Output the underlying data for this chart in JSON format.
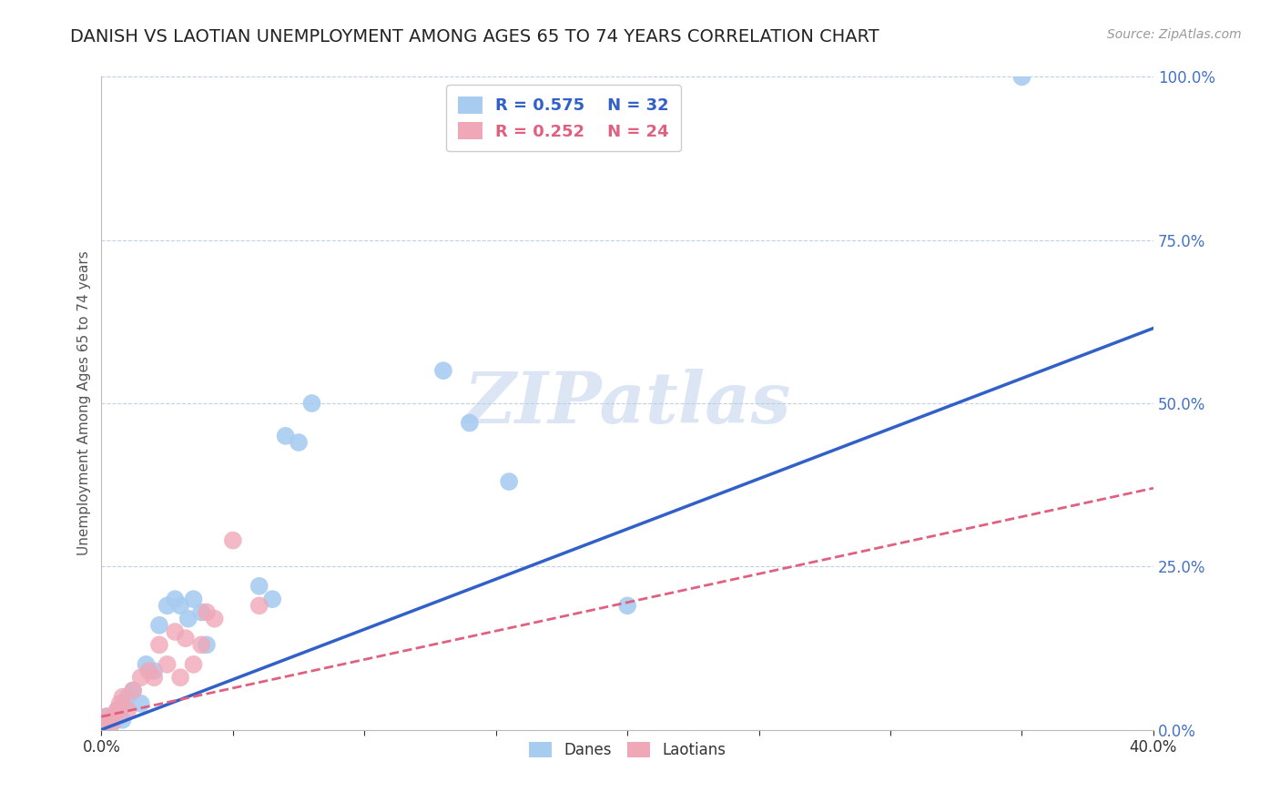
{
  "title": "DANISH VS LAOTIAN UNEMPLOYMENT AMONG AGES 65 TO 74 YEARS CORRELATION CHART",
  "source": "Source: ZipAtlas.com",
  "ylabel": "Unemployment Among Ages 65 to 74 years",
  "xlim": [
    0.0,
    0.4
  ],
  "ylim": [
    0.0,
    1.0
  ],
  "yticks": [
    0.0,
    0.25,
    0.5,
    0.75,
    1.0
  ],
  "xticks": [
    0.0,
    0.05,
    0.1,
    0.15,
    0.2,
    0.25,
    0.3,
    0.35,
    0.4
  ],
  "danes_R": 0.575,
  "danes_N": 32,
  "laotians_R": 0.252,
  "laotians_N": 24,
  "danes_color": "#A8CCF0",
  "laotians_color": "#F0A8B8",
  "danes_line_color": "#3060C8",
  "laotians_line_color": "#E06080",
  "grid_color": "#C0D0E8",
  "background_color": "#FFFFFF",
  "danes_x": [
    0.001,
    0.002,
    0.003,
    0.004,
    0.005,
    0.006,
    0.007,
    0.008,
    0.009,
    0.01,
    0.012,
    0.015,
    0.017,
    0.02,
    0.022,
    0.025,
    0.028,
    0.03,
    0.033,
    0.035,
    0.038,
    0.04,
    0.06,
    0.065,
    0.07,
    0.075,
    0.08,
    0.13,
    0.14,
    0.155,
    0.2,
    0.35
  ],
  "danes_y": [
    0.01,
    0.02,
    0.015,
    0.01,
    0.02,
    0.03,
    0.02,
    0.015,
    0.04,
    0.05,
    0.06,
    0.04,
    0.1,
    0.09,
    0.16,
    0.19,
    0.2,
    0.19,
    0.17,
    0.2,
    0.18,
    0.13,
    0.22,
    0.2,
    0.45,
    0.44,
    0.5,
    0.55,
    0.47,
    0.38,
    0.19,
    1.0
  ],
  "laotians_x": [
    0.001,
    0.002,
    0.003,
    0.004,
    0.005,
    0.006,
    0.007,
    0.008,
    0.01,
    0.012,
    0.015,
    0.018,
    0.02,
    0.022,
    0.025,
    0.028,
    0.03,
    0.032,
    0.035,
    0.038,
    0.04,
    0.043,
    0.05,
    0.06
  ],
  "laotians_y": [
    0.01,
    0.02,
    0.015,
    0.01,
    0.02,
    0.03,
    0.04,
    0.05,
    0.03,
    0.06,
    0.08,
    0.09,
    0.08,
    0.13,
    0.1,
    0.15,
    0.08,
    0.14,
    0.1,
    0.13,
    0.18,
    0.17,
    0.29,
    0.19
  ],
  "danes_line_x0": 0.0,
  "danes_line_y0": 0.0,
  "danes_line_x1": 0.4,
  "danes_line_y1": 0.615,
  "laotians_line_x0": 0.0,
  "laotians_line_y0": 0.02,
  "laotians_line_x1": 0.4,
  "laotians_line_y1": 0.37,
  "title_color": "#222222",
  "axis_label_color": "#555555",
  "tick_color": "#4472C4",
  "watermark": "ZIPatlas",
  "title_fontsize": 14,
  "label_fontsize": 11,
  "tick_fontsize": 12
}
